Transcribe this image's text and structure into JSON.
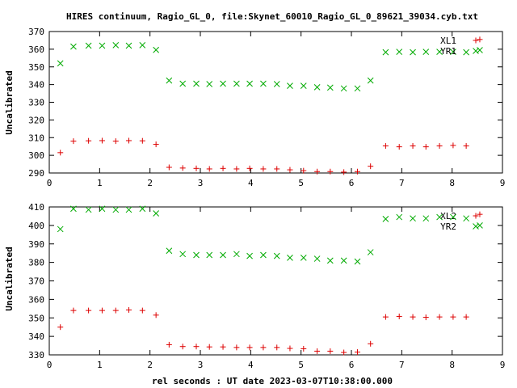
{
  "chart_data": {
    "type": "scatter",
    "title": "HIRES continuum, Ragio_GL_0, file:Skynet_60010_Ragio_GL_0_89621_39034.cyb.txt",
    "xlabel": "rel seconds : UT date 2023-03-07T10:38:00.000",
    "colors": {
      "red": "#dd0000",
      "green": "#00aa00"
    },
    "panels": [
      {
        "ylabel": "Uncalibrated",
        "xlim": [
          0,
          9
        ],
        "ylim": [
          290,
          370
        ],
        "xticks": [
          0,
          1,
          2,
          3,
          4,
          5,
          6,
          7,
          8,
          9
        ],
        "yticks": [
          290,
          300,
          310,
          320,
          330,
          340,
          350,
          360,
          370
        ],
        "legend_position": "top-right",
        "series": [
          {
            "name": "XL1",
            "marker": "plus",
            "color": "#dd0000",
            "x": [
              0.22,
              0.48,
              0.78,
              1.05,
              1.32,
              1.58,
              1.85,
              2.12,
              2.38,
              2.65,
              2.92,
              3.18,
              3.45,
              3.72,
              3.98,
              4.25,
              4.52,
              4.78,
              5.05,
              5.32,
              5.58,
              5.85,
              6.12,
              6.38,
              6.68,
              6.95,
              7.22,
              7.48,
              7.75,
              8.02,
              8.28,
              8.55
            ],
            "values": [
              301.5,
              308,
              308.2,
              308.3,
              308,
              308.3,
              308.2,
              306.2,
              293.2,
              292.8,
              292.6,
              292.3,
              292.6,
              292.3,
              292.6,
              292.3,
              292.3,
              291.8,
              291.3,
              290.8,
              290.8,
              290.5,
              290.8,
              293.8,
              305.3,
              304.8,
              305.3,
              304.8,
              305.3,
              305.6,
              305.3,
              365.5
            ]
          },
          {
            "name": "YR1",
            "marker": "cross",
            "color": "#00aa00",
            "x": [
              0.22,
              0.48,
              0.78,
              1.05,
              1.32,
              1.58,
              1.85,
              2.12,
              2.38,
              2.65,
              2.92,
              3.18,
              3.45,
              3.72,
              3.98,
              4.25,
              4.52,
              4.78,
              5.05,
              5.32,
              5.58,
              5.85,
              6.12,
              6.38,
              6.68,
              6.95,
              7.22,
              7.48,
              7.75,
              8.02,
              8.28,
              8.55
            ],
            "values": [
              352,
              361.5,
              362,
              362,
              362.3,
              362,
              362.3,
              359.6,
              342.3,
              340.5,
              340.5,
              340.3,
              340.5,
              340.5,
              340.5,
              340.5,
              340.3,
              339.3,
              339.3,
              338.5,
              338.3,
              337.8,
              337.8,
              342.3,
              358.3,
              358.5,
              358.3,
              358.5,
              358.5,
              358.5,
              358.3,
              359.5
            ]
          }
        ]
      },
      {
        "ylabel": "Uncalibrated",
        "xlim": [
          0,
          9
        ],
        "ylim": [
          330,
          410
        ],
        "xticks": [
          0,
          1,
          2,
          3,
          4,
          5,
          6,
          7,
          8,
          9
        ],
        "yticks": [
          330,
          340,
          350,
          360,
          370,
          380,
          390,
          400,
          410
        ],
        "legend_position": "top-right",
        "series": [
          {
            "name": "XL2",
            "marker": "plus",
            "color": "#dd0000",
            "x": [
              0.22,
              0.48,
              0.78,
              1.05,
              1.32,
              1.58,
              1.85,
              2.12,
              2.38,
              2.65,
              2.92,
              3.18,
              3.45,
              3.72,
              3.98,
              4.25,
              4.52,
              4.78,
              5.05,
              5.32,
              5.58,
              5.85,
              6.12,
              6.38,
              6.68,
              6.95,
              7.22,
              7.48,
              7.75,
              8.02,
              8.28,
              8.55
            ],
            "values": [
              345,
              354,
              354,
              354,
              354,
              354.3,
              354,
              351.5,
              335.5,
              334.5,
              334.5,
              334.3,
              334.3,
              334,
              334,
              334,
              334,
              333.5,
              333.3,
              332,
              332,
              331.3,
              331.5,
              336,
              350.5,
              350.8,
              350.5,
              350.3,
              350.5,
              350.5,
              350.5,
              406
            ]
          },
          {
            "name": "YR2",
            "marker": "cross",
            "color": "#00aa00",
            "x": [
              0.22,
              0.48,
              0.78,
              1.05,
              1.32,
              1.58,
              1.85,
              2.12,
              2.38,
              2.65,
              2.92,
              3.18,
              3.45,
              3.72,
              3.98,
              4.25,
              4.52,
              4.78,
              5.05,
              5.32,
              5.58,
              5.85,
              6.12,
              6.38,
              6.68,
              6.95,
              7.22,
              7.48,
              7.75,
              8.02,
              8.28,
              8.55
            ],
            "values": [
              398,
              409,
              408.5,
              409,
              408.5,
              408.5,
              409,
              406.5,
              386.3,
              384.5,
              384,
              384,
              384,
              384.5,
              383.5,
              384,
              383.5,
              382.5,
              382.5,
              382,
              381,
              381,
              380.5,
              385.5,
              403.5,
              404.5,
              403.8,
              403.8,
              404.5,
              404.5,
              403.8,
              400
            ]
          }
        ]
      }
    ]
  }
}
